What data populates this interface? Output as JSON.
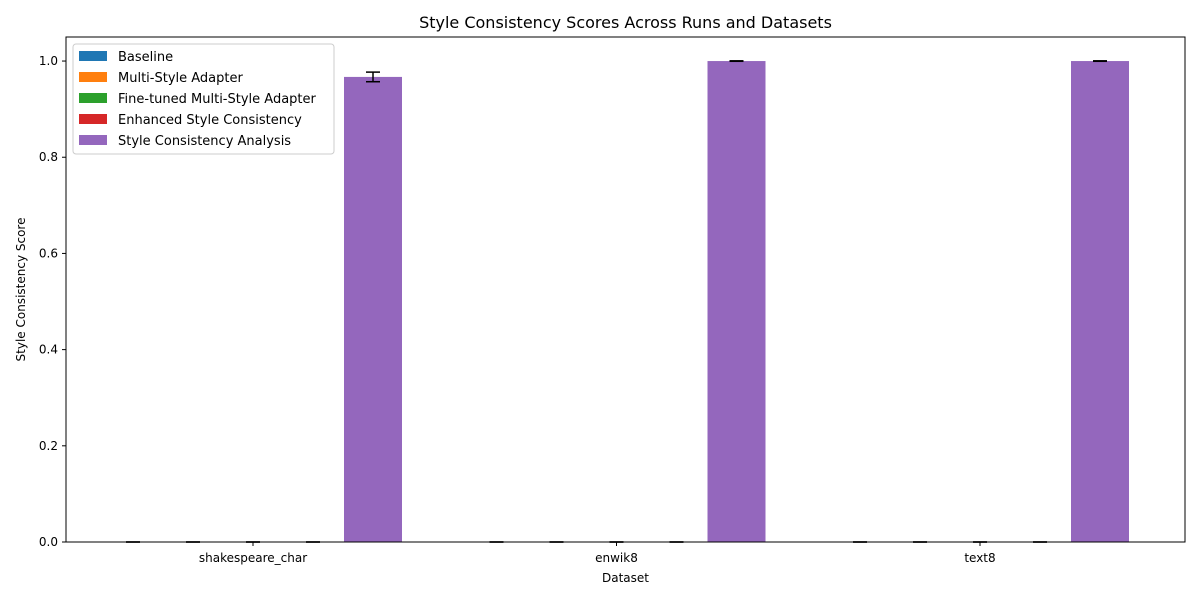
{
  "chart_data": {
    "type": "bar",
    "title": "Style Consistency Scores Across Runs and Datasets",
    "xlabel": "Dataset",
    "ylabel": "Style Consistency Score",
    "categories": [
      "shakespeare_char",
      "enwik8",
      "text8"
    ],
    "ylim": [
      0,
      1.05
    ],
    "yticks": [
      0.0,
      0.2,
      0.4,
      0.6,
      0.8,
      1.0
    ],
    "ytick_labels": [
      "0.0",
      "0.2",
      "0.4",
      "0.6",
      "0.8",
      "1.0"
    ],
    "legend_position": "top-left",
    "grid": false,
    "series": [
      {
        "name": "Baseline",
        "color": "#1f77b4",
        "values": [
          0,
          0,
          0
        ],
        "errors": [
          0,
          0,
          0
        ]
      },
      {
        "name": "Multi-Style Adapter",
        "color": "#ff7f0e",
        "values": [
          0,
          0,
          0
        ],
        "errors": [
          0,
          0,
          0
        ]
      },
      {
        "name": "Fine-tuned Multi-Style Adapter",
        "color": "#2ca02c",
        "values": [
          0,
          0,
          0
        ],
        "errors": [
          0,
          0,
          0
        ]
      },
      {
        "name": "Enhanced Style Consistency",
        "color": "#d62728",
        "values": [
          0,
          0,
          0
        ],
        "errors": [
          0,
          0,
          0
        ]
      },
      {
        "name": "Style Consistency Analysis",
        "color": "#9467bd",
        "values": [
          0.967,
          1.0,
          1.0
        ],
        "errors": [
          0.01,
          0.0005,
          0.0005
        ]
      }
    ]
  }
}
